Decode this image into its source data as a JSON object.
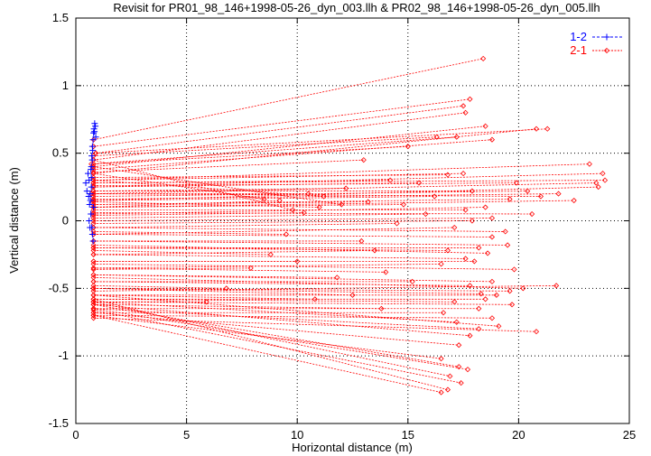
{
  "chart_data": {
    "type": "line",
    "title": "Revisit for PR01_98_146+1998-05-26_dyn_003.llh & PR02_98_146+1998-05-26_dyn_005.llh",
    "xlabel": "Horizontal distance (m)",
    "ylabel": "Vertical distance (m)",
    "xlim": [
      0,
      25
    ],
    "ylim": [
      -1.5,
      1.5
    ],
    "x_ticks": [
      0,
      5,
      10,
      15,
      20,
      25
    ],
    "y_ticks": [
      -1.5,
      -1,
      -0.5,
      0,
      0.5,
      1,
      1.5
    ],
    "grid": true,
    "legend_position": "top-right",
    "series": [
      {
        "name": "1-2",
        "color": "#0000ff",
        "marker": "plus",
        "points": [
          [
            0.45,
            0.28
          ],
          [
            0.5,
            0.22
          ],
          [
            0.55,
            0.35
          ],
          [
            0.6,
            0.3
          ],
          [
            0.62,
            0.12
          ],
          [
            0.65,
            0.2
          ],
          [
            0.68,
            0.05
          ],
          [
            0.7,
            0.4
          ],
          [
            0.72,
            -0.05
          ],
          [
            0.72,
            0.48
          ],
          [
            0.75,
            0.55
          ],
          [
            0.75,
            -0.1
          ],
          [
            0.78,
            0.6
          ],
          [
            0.78,
            -0.15
          ],
          [
            0.8,
            0.65
          ],
          [
            0.8,
            0.1
          ],
          [
            0.82,
            0.68
          ],
          [
            0.85,
            0.72
          ],
          [
            0.88,
            0.7
          ],
          [
            0.9,
            0.62
          ],
          [
            0.7,
            0.25
          ],
          [
            0.66,
            0.15
          ],
          [
            0.74,
            0.45
          ],
          [
            0.6,
            0.0
          ],
          [
            0.64,
            -0.05
          ],
          [
            0.7,
            0.32
          ],
          [
            0.76,
            0.52
          ],
          [
            0.84,
            0.66
          ],
          [
            0.58,
            0.18
          ],
          [
            0.68,
            0.38
          ]
        ]
      },
      {
        "name": "2-1",
        "color": "#ff0000",
        "marker": "diamond",
        "segments": [
          [
            [
              0.8,
              0.6
            ],
            [
              18.4,
              1.2
            ]
          ],
          [
            [
              0.8,
              0.55
            ],
            [
              17.8,
              0.9
            ]
          ],
          [
            [
              0.9,
              0.5
            ],
            [
              17.5,
              0.85
            ]
          ],
          [
            [
              0.8,
              0.45
            ],
            [
              17.6,
              0.8
            ]
          ],
          [
            [
              0.8,
              0.4
            ],
            [
              18.5,
              0.7
            ]
          ],
          [
            [
              0.9,
              0.5
            ],
            [
              21.3,
              0.68
            ]
          ],
          [
            [
              0.8,
              0.35
            ],
            [
              20.8,
              0.68
            ]
          ],
          [
            [
              0.8,
              0.38
            ],
            [
              18.8,
              0.6
            ]
          ],
          [
            [
              0.7,
              0.42
            ],
            [
              17.2,
              0.62
            ]
          ],
          [
            [
              0.8,
              0.3
            ],
            [
              23.2,
              0.42
            ]
          ],
          [
            [
              0.8,
              0.25
            ],
            [
              23.8,
              0.35
            ]
          ],
          [
            [
              0.8,
              0.28
            ],
            [
              23.9,
              0.3
            ]
          ],
          [
            [
              0.7,
              0.2
            ],
            [
              23.5,
              0.28
            ]
          ],
          [
            [
              0.8,
              0.15
            ],
            [
              23.6,
              0.25
            ]
          ],
          [
            [
              0.8,
              0.18
            ],
            [
              20.4,
              0.22
            ]
          ],
          [
            [
              0.8,
              0.1
            ],
            [
              22.5,
              0.15
            ]
          ],
          [
            [
              0.8,
              0.2
            ],
            [
              21.0,
              0.18
            ]
          ],
          [
            [
              0.8,
              0.12
            ],
            [
              19.6,
              0.16
            ]
          ],
          [
            [
              0.8,
              0.22
            ],
            [
              17.9,
              0.22
            ]
          ],
          [
            [
              0.8,
              0.3
            ],
            [
              17.5,
              0.35
            ]
          ],
          [
            [
              0.8,
              0.05
            ],
            [
              18.5,
              0.1
            ]
          ],
          [
            [
              0.8,
              0.08
            ],
            [
              17.6,
              0.08
            ]
          ],
          [
            [
              0.8,
              0.0
            ],
            [
              18.8,
              0.02
            ]
          ],
          [
            [
              0.8,
              0.15
            ],
            [
              16.2,
              0.18
            ]
          ],
          [
            [
              0.8,
              0.25
            ],
            [
              15.5,
              0.28
            ]
          ],
          [
            [
              0.8,
              0.1
            ],
            [
              14.8,
              0.12
            ]
          ],
          [
            [
              0.8,
              0.45
            ],
            [
              9.8,
              0.08
            ]
          ],
          [
            [
              0.8,
              0.4
            ],
            [
              12.0,
              0.12
            ]
          ],
          [
            [
              0.8,
              0.35
            ],
            [
              8.5,
              0.16
            ]
          ],
          [
            [
              0.8,
              0.3
            ],
            [
              11.2,
              0.18
            ]
          ],
          [
            [
              0.8,
              0.2
            ],
            [
              10.5,
              0.2
            ]
          ],
          [
            [
              0.8,
              0.1
            ],
            [
              9.2,
              0.15
            ]
          ],
          [
            [
              0.8,
              -0.05
            ],
            [
              19.4,
              -0.08
            ]
          ],
          [
            [
              0.8,
              -0.1
            ],
            [
              18.8,
              -0.12
            ]
          ],
          [
            [
              0.8,
              -0.15
            ],
            [
              19.5,
              -0.18
            ]
          ],
          [
            [
              0.8,
              -0.2
            ],
            [
              18.2,
              -0.2
            ]
          ],
          [
            [
              0.8,
              -0.25
            ],
            [
              17.6,
              -0.28
            ]
          ],
          [
            [
              0.8,
              -0.3
            ],
            [
              18.0,
              -0.3
            ]
          ],
          [
            [
              0.8,
              -0.35
            ],
            [
              16.5,
              -0.32
            ]
          ],
          [
            [
              0.8,
              -0.4
            ],
            [
              18.8,
              -0.45
            ]
          ],
          [
            [
              0.8,
              -0.45
            ],
            [
              17.8,
              -0.48
            ]
          ],
          [
            [
              0.8,
              -0.5
            ],
            [
              19.6,
              -0.52
            ]
          ],
          [
            [
              0.8,
              -0.52
            ],
            [
              21.7,
              -0.48
            ]
          ],
          [
            [
              0.8,
              -0.55
            ],
            [
              19.0,
              -0.55
            ]
          ],
          [
            [
              0.8,
              -0.58
            ],
            [
              18.5,
              -0.58
            ]
          ],
          [
            [
              0.8,
              -0.6
            ],
            [
              19.7,
              -0.62
            ]
          ],
          [
            [
              0.8,
              -0.65
            ],
            [
              18.2,
              -0.65
            ]
          ],
          [
            [
              0.8,
              -0.68
            ],
            [
              16.6,
              -0.68
            ]
          ],
          [
            [
              0.8,
              -0.7
            ],
            [
              18.8,
              -0.72
            ]
          ],
          [
            [
              0.8,
              -0.72
            ],
            [
              20.8,
              -0.82
            ]
          ],
          [
            [
              0.8,
              -0.55
            ],
            [
              19.1,
              -0.78
            ]
          ],
          [
            [
              0.8,
              -0.6
            ],
            [
              17.2,
              -0.75
            ]
          ],
          [
            [
              0.8,
              -0.65
            ],
            [
              18.2,
              -0.8
            ]
          ],
          [
            [
              0.8,
              -0.62
            ],
            [
              17.8,
              -0.85
            ]
          ],
          [
            [
              0.8,
              -0.68
            ],
            [
              17.3,
              -0.92
            ]
          ],
          [
            [
              0.8,
              -0.7
            ],
            [
              16.5,
              -1.02
            ]
          ],
          [
            [
              0.8,
              -0.62
            ],
            [
              17.3,
              -1.08
            ]
          ],
          [
            [
              0.8,
              -0.65
            ],
            [
              17.7,
              -1.1
            ]
          ],
          [
            [
              0.8,
              -0.6
            ],
            [
              16.9,
              -1.15
            ]
          ],
          [
            [
              0.8,
              -0.66
            ],
            [
              17.4,
              -1.2
            ]
          ],
          [
            [
              0.8,
              -0.58
            ],
            [
              16.8,
              -1.25
            ]
          ],
          [
            [
              0.8,
              -0.7
            ],
            [
              16.5,
              -1.27
            ]
          ],
          [
            [
              0.8,
              -0.45
            ],
            [
              15.2,
              -0.45
            ]
          ],
          [
            [
              0.8,
              -0.35
            ],
            [
              14.0,
              -0.38
            ]
          ],
          [
            [
              0.8,
              -0.25
            ],
            [
              13.5,
              -0.22
            ]
          ],
          [
            [
              0.8,
              -0.5
            ],
            [
              12.5,
              -0.55
            ]
          ],
          [
            [
              0.8,
              -0.4
            ],
            [
              11.8,
              -0.42
            ]
          ],
          [
            [
              0.8,
              -0.15
            ],
            [
              12.9,
              -0.15
            ]
          ],
          [
            [
              0.8,
              -0.05
            ],
            [
              14.5,
              -0.02
            ]
          ],
          [
            [
              0.8,
              -0.3
            ],
            [
              10.0,
              -0.3
            ]
          ],
          [
            [
              0.8,
              -0.55
            ],
            [
              10.8,
              -0.58
            ]
          ],
          [
            [
              0.8,
              -0.62
            ],
            [
              13.8,
              -0.65
            ]
          ],
          [
            [
              0.8,
              -0.2
            ],
            [
              16.8,
              -0.22
            ]
          ],
          [
            [
              0.8,
              -0.1
            ],
            [
              17.1,
              -0.05
            ]
          ],
          [
            [
              0.8,
              0.02
            ],
            [
              15.8,
              0.05
            ]
          ],
          [
            [
              0.8,
              0.12
            ],
            [
              13.2,
              0.14
            ]
          ],
          [
            [
              0.8,
              0.28
            ],
            [
              14.2,
              0.3
            ]
          ],
          [
            [
              0.8,
              0.32
            ],
            [
              16.8,
              0.34
            ]
          ],
          [
            [
              0.8,
              0.26
            ],
            [
              19.9,
              0.28
            ]
          ],
          [
            [
              0.8,
              0.16
            ],
            [
              21.8,
              0.2
            ]
          ],
          [
            [
              0.8,
              0.06
            ],
            [
              20.6,
              0.05
            ]
          ],
          [
            [
              0.8,
              -0.02
            ],
            [
              17.9,
              0.0
            ]
          ],
          [
            [
              0.8,
              -0.18
            ],
            [
              18.6,
              -0.24
            ]
          ],
          [
            [
              0.8,
              -0.32
            ],
            [
              19.8,
              -0.36
            ]
          ],
          [
            [
              0.8,
              -0.42
            ],
            [
              20.2,
              -0.5
            ]
          ],
          [
            [
              0.8,
              -0.5
            ],
            [
              18.3,
              -0.54
            ]
          ],
          [
            [
              0.8,
              -0.58
            ],
            [
              17.1,
              -0.6
            ]
          ],
          [
            [
              0.8,
              0.42
            ],
            [
              15.0,
              0.55
            ]
          ],
          [
            [
              0.8,
              0.36
            ],
            [
              13.0,
              0.45
            ]
          ],
          [
            [
              0.8,
              0.48
            ],
            [
              16.3,
              0.62
            ]
          ],
          [
            [
              0.8,
              0.22
            ],
            [
              12.2,
              0.24
            ]
          ],
          [
            [
              0.8,
              0.14
            ],
            [
              11.0,
              0.1
            ]
          ],
          [
            [
              0.8,
              0.04
            ],
            [
              10.3,
              0.06
            ]
          ],
          [
            [
              0.8,
              -0.08
            ],
            [
              9.5,
              -0.1
            ]
          ],
          [
            [
              0.8,
              -0.22
            ],
            [
              8.8,
              -0.25
            ]
          ],
          [
            [
              0.8,
              -0.36
            ],
            [
              7.9,
              -0.35
            ]
          ],
          [
            [
              0.8,
              -0.48
            ],
            [
              6.8,
              -0.5
            ]
          ],
          [
            [
              0.8,
              -0.6
            ],
            [
              5.9,
              -0.6
            ]
          ]
        ]
      }
    ]
  }
}
